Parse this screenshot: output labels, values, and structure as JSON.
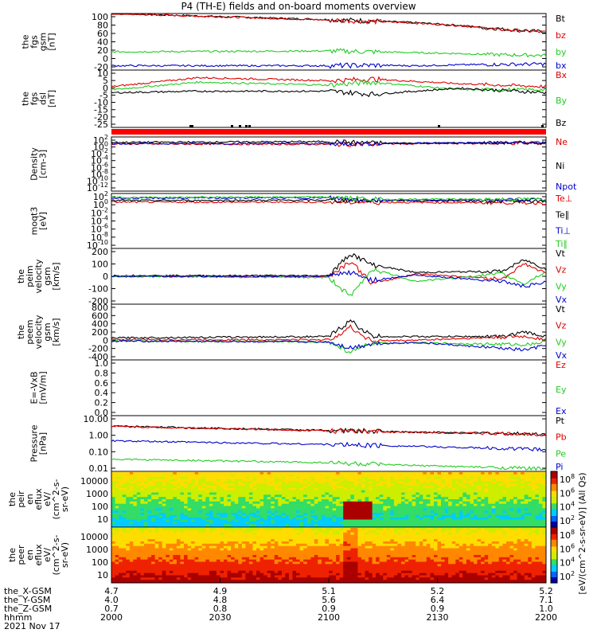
{
  "title": "P4 (TH-E) fields and on-board moments overview",
  "colors": {
    "black": "#000000",
    "red": "#dd0000",
    "green": "#22cc22",
    "blue": "#0000cc"
  },
  "chart_data": [
    {
      "type": "line",
      "name": "fgs gsm",
      "ylabel": [
        "the",
        "fgs",
        "gsm",
        "[nT]"
      ],
      "ylim": [
        -30,
        100
      ],
      "yticks": [
        "100",
        "80",
        "60",
        "40",
        "20",
        "0",
        "-20"
      ],
      "series": [
        {
          "name": "Bt",
          "color": "black",
          "points": [
            [
              0,
              100
            ],
            [
              0.5,
              86
            ],
            [
              0.6,
              83
            ],
            [
              0.7,
              79
            ],
            [
              0.8,
              73
            ],
            [
              0.9,
              64
            ],
            [
              1,
              58
            ]
          ]
        },
        {
          "name": "bz",
          "color": "red",
          "points": [
            [
              0,
              100
            ],
            [
              0.5,
              85
            ],
            [
              0.6,
              82
            ],
            [
              0.7,
              78
            ],
            [
              0.8,
              72
            ],
            [
              0.9,
              63
            ],
            [
              1,
              57
            ]
          ]
        },
        {
          "name": "by",
          "color": "green",
          "points": [
            [
              0,
              12
            ],
            [
              0.5,
              14
            ],
            [
              0.6,
              12
            ],
            [
              0.7,
              10
            ],
            [
              0.8,
              8
            ],
            [
              0.9,
              5
            ],
            [
              1,
              4
            ]
          ]
        },
        {
          "name": "bx",
          "color": "blue",
          "points": [
            [
              0,
              -20
            ],
            [
              0.5,
              -20
            ],
            [
              0.6,
              -19
            ],
            [
              0.7,
              -20
            ],
            [
              0.8,
              -18
            ],
            [
              0.9,
              -17
            ],
            [
              1,
              -16
            ]
          ]
        }
      ]
    },
    {
      "type": "line",
      "name": "fgs dsl",
      "ylabel": [
        "the",
        "fgs",
        "dsl",
        "[nT]"
      ],
      "ylim": [
        -27,
        11
      ],
      "yticks": [
        "10",
        "5",
        "0",
        "-5",
        "-10",
        "-15",
        "-20",
        "-25"
      ],
      "series": [
        {
          "name": "Bx",
          "color": "red",
          "points": [
            [
              0,
              0
            ],
            [
              0.2,
              6
            ],
            [
              0.5,
              4
            ],
            [
              0.6,
              5
            ],
            [
              0.8,
              2
            ],
            [
              1,
              0
            ]
          ]
        },
        {
          "name": "By",
          "color": "green",
          "points": [
            [
              0,
              -2
            ],
            [
              0.2,
              3
            ],
            [
              0.5,
              1
            ],
            [
              0.6,
              3
            ],
            [
              0.8,
              -2
            ],
            [
              1,
              -2
            ]
          ]
        },
        {
          "name": "Bz",
          "color": "black",
          "points": [
            [
              0,
              -4
            ],
            [
              0.2,
              -3
            ],
            [
              0.5,
              -3
            ],
            [
              0.6,
              -5
            ],
            [
              0.8,
              -1
            ],
            [
              1,
              -4
            ]
          ]
        }
      ]
    },
    {
      "type": "line",
      "name": "Density",
      "ylabel": [
        "Density",
        "[cm-3]"
      ],
      "ylim": [
        -12,
        2
      ],
      "log": true,
      "yticks": [
        "10^2",
        "10^0",
        "10^-2",
        "10^-4",
        "10^-6",
        "10^-8",
        "10^-10",
        "10^-12"
      ],
      "series": [
        {
          "name": "Ne",
          "color": "red",
          "points": [
            [
              0,
              0.2
            ],
            [
              0.5,
              0.1
            ],
            [
              0.6,
              0.2
            ],
            [
              1,
              0.4
            ]
          ]
        },
        {
          "name": "Ni",
          "color": "black",
          "points": [
            [
              0,
              0.6
            ],
            [
              0.5,
              0.8
            ],
            [
              0.6,
              0.4
            ],
            [
              1,
              0.5
            ]
          ]
        },
        {
          "name": "Npot",
          "color": "blue",
          "points": [
            [
              0,
              0.3
            ],
            [
              0.5,
              0.3
            ],
            [
              0.6,
              0.3
            ],
            [
              1,
              0.6
            ]
          ]
        }
      ]
    },
    {
      "type": "line",
      "name": "moqt3",
      "ylabel": [
        "moqt3",
        "[eV]"
      ],
      "ylim": [
        -12,
        2
      ],
      "log": true,
      "yticks": [
        "10^2",
        "10^0",
        "10^-2",
        "10^-4",
        "10^-6",
        "10^-8",
        "10^-10"
      ],
      "series": [
        {
          "name": "Te⊥",
          "color": "red",
          "points": [
            [
              0,
              -0.2
            ],
            [
              0.5,
              -0.2
            ],
            [
              1,
              -0.4
            ]
          ]
        },
        {
          "name": "Te∥",
          "color": "black",
          "points": [
            [
              0,
              0.2
            ],
            [
              0.5,
              0.3
            ],
            [
              1,
              0
            ]
          ]
        },
        {
          "name": "Ti⊥",
          "color": "blue",
          "points": [
            [
              0,
              0.8
            ],
            [
              0.5,
              0.9
            ],
            [
              0.6,
              0.3
            ],
            [
              1,
              0.4
            ]
          ]
        },
        {
          "name": "Ti∥",
          "color": "green",
          "points": [
            [
              0,
              1.0
            ],
            [
              0.5,
              1.1
            ],
            [
              0.6,
              0.5
            ],
            [
              1,
              0.6
            ]
          ]
        }
      ]
    },
    {
      "type": "line",
      "name": "peim velocity",
      "ylabel": [
        "the",
        "peim",
        "velocity",
        "gsm",
        "[km/s]"
      ],
      "ylim": [
        -220,
        220
      ],
      "yticks": [
        "200",
        "100",
        "0",
        "-100",
        "-200"
      ],
      "series": [
        {
          "name": "Vt",
          "color": "black",
          "points": [
            [
              0,
              5
            ],
            [
              0.5,
              5
            ],
            [
              0.55,
              180
            ],
            [
              0.6,
              90
            ],
            [
              0.7,
              30
            ],
            [
              0.9,
              40
            ],
            [
              0.95,
              130
            ],
            [
              1,
              60
            ]
          ]
        },
        {
          "name": "Vz",
          "color": "red",
          "points": [
            [
              0,
              0
            ],
            [
              0.5,
              0
            ],
            [
              0.55,
              120
            ],
            [
              0.6,
              -60
            ],
            [
              0.7,
              20
            ],
            [
              0.9,
              -20
            ],
            [
              0.95,
              100
            ],
            [
              1,
              20
            ]
          ]
        },
        {
          "name": "Vy",
          "color": "green",
          "points": [
            [
              0,
              0
            ],
            [
              0.5,
              -10
            ],
            [
              0.55,
              -160
            ],
            [
              0.6,
              60
            ],
            [
              0.7,
              -40
            ],
            [
              0.9,
              20
            ],
            [
              0.95,
              -60
            ],
            [
              1,
              40
            ]
          ]
        },
        {
          "name": "Vx",
          "color": "blue",
          "points": [
            [
              0,
              0
            ],
            [
              0.5,
              0
            ],
            [
              0.55,
              30
            ],
            [
              0.6,
              -30
            ],
            [
              0.7,
              10
            ],
            [
              0.9,
              -40
            ],
            [
              0.95,
              -80
            ],
            [
              1,
              -50
            ]
          ]
        }
      ]
    },
    {
      "type": "line",
      "name": "peem velocity",
      "ylabel": [
        "the",
        "peem",
        "velocity",
        "gsm",
        "[km/s]"
      ],
      "ylim": [
        -420,
        820
      ],
      "yticks": [
        "800",
        "600",
        "400",
        "200",
        "0",
        "-200",
        "-400"
      ],
      "series": [
        {
          "name": "Vt",
          "color": "black",
          "points": [
            [
              0,
              70
            ],
            [
              0.5,
              100
            ],
            [
              0.55,
              450
            ],
            [
              0.6,
              100
            ],
            [
              0.7,
              100
            ],
            [
              0.9,
              100
            ],
            [
              0.95,
              200
            ],
            [
              1,
              100
            ]
          ]
        },
        {
          "name": "Vz",
          "color": "red",
          "points": [
            [
              0,
              30
            ],
            [
              0.5,
              30
            ],
            [
              0.55,
              300
            ],
            [
              0.6,
              0
            ],
            [
              0.7,
              20
            ],
            [
              0.95,
              100
            ],
            [
              1,
              40
            ]
          ]
        },
        {
          "name": "Vy",
          "color": "green",
          "points": [
            [
              0,
              0
            ],
            [
              0.5,
              -20
            ],
            [
              0.55,
              -250
            ],
            [
              0.6,
              -50
            ],
            [
              0.7,
              -40
            ],
            [
              0.95,
              -80
            ],
            [
              1,
              -20
            ]
          ]
        },
        {
          "name": "Vx",
          "color": "blue",
          "points": [
            [
              0,
              0
            ],
            [
              0.5,
              -20
            ],
            [
              0.55,
              -150
            ],
            [
              0.6,
              -60
            ],
            [
              0.7,
              -30
            ],
            [
              0.95,
              -200
            ],
            [
              1,
              -100
            ]
          ]
        }
      ]
    },
    {
      "type": "line",
      "name": "E=-VxB",
      "ylabel": [
        "E=-VxB",
        "[mV/m]"
      ],
      "ylim": [
        0,
        1
      ],
      "yticks": [
        "1.0",
        "0.8",
        "0.6",
        "0.4",
        "0.2",
        "0.0"
      ],
      "series": [
        {
          "name": "Ez",
          "color": "red",
          "points": []
        },
        {
          "name": "Ey",
          "color": "green",
          "points": []
        },
        {
          "name": "Ex",
          "color": "blue",
          "points": []
        }
      ]
    },
    {
      "type": "line",
      "name": "Pressure",
      "ylabel": [
        "Pressure",
        "[nPa]"
      ],
      "ylim": [
        -2,
        1.2
      ],
      "log": true,
      "yticks": [
        "10.00",
        "1.00",
        "0.10",
        "0.01"
      ],
      "series": [
        {
          "name": "Pt",
          "color": "black",
          "points": [
            [
              0,
              0.6
            ],
            [
              0.5,
              0.35
            ],
            [
              0.6,
              0.3
            ],
            [
              1,
              0.14
            ]
          ]
        },
        {
          "name": "Pb",
          "color": "red",
          "points": [
            [
              0,
              0.58
            ],
            [
              0.5,
              0.33
            ],
            [
              0.6,
              0.28
            ],
            [
              1,
              0.12
            ]
          ]
        },
        {
          "name": "Pe",
          "color": "green",
          "points": [
            [
              0,
              -1.3
            ],
            [
              0.5,
              -1.5
            ],
            [
              0.6,
              -1.6
            ],
            [
              1,
              -1.85
            ]
          ]
        },
        {
          "name": "Pi",
          "color": "blue",
          "points": [
            [
              0,
              -0.25
            ],
            [
              0.5,
              -0.45
            ],
            [
              0.6,
              -0.5
            ],
            [
              1,
              -0.75
            ]
          ]
        }
      ]
    },
    {
      "type": "heatmap",
      "name": "peir",
      "ylabel": [
        "the",
        "peir",
        "en",
        "eflux",
        "eV/",
        "(cm^2-s-",
        "sr-eV)"
      ],
      "yticks": [
        "10000",
        "1000",
        "100",
        "10"
      ],
      "colorbar": {
        "ticks": [
          "10^8",
          "10^6",
          "10^4",
          "10^2"
        ],
        "label": "[eV/(cm^2-s-sr-eV)] (All Qs)"
      }
    },
    {
      "type": "heatmap",
      "name": "peer",
      "ylabel": [
        "the",
        "peer",
        "en",
        "eflux",
        "eV/",
        "(cm^2-s-",
        "sr-eV)"
      ],
      "yticks": [
        "10000",
        "1000",
        "100",
        "10"
      ],
      "colorbar": {
        "ticks": [
          "10^8",
          "10^6",
          "10^4",
          "10^2"
        ],
        "label": "[eV/(cm^2-s-sr-eV)] (All Qs)"
      }
    }
  ],
  "xaxis": {
    "rows": [
      {
        "label": "the_X-GSM",
        "values": [
          "4.7",
          "4.9",
          "5.1",
          "5.2",
          "5.2"
        ]
      },
      {
        "label": "the_Y-GSM",
        "values": [
          "4.0",
          "4.8",
          "5.6",
          "6.4",
          "7.1"
        ]
      },
      {
        "label": "the_Z-GSM",
        "values": [
          "0.7",
          "0.8",
          "0.9",
          "0.9",
          "1.0"
        ]
      },
      {
        "label": "hhmm",
        "values": [
          "2000",
          "2030",
          "2100",
          "2130",
          "2200"
        ]
      }
    ],
    "date": "2021 Nov 17"
  }
}
